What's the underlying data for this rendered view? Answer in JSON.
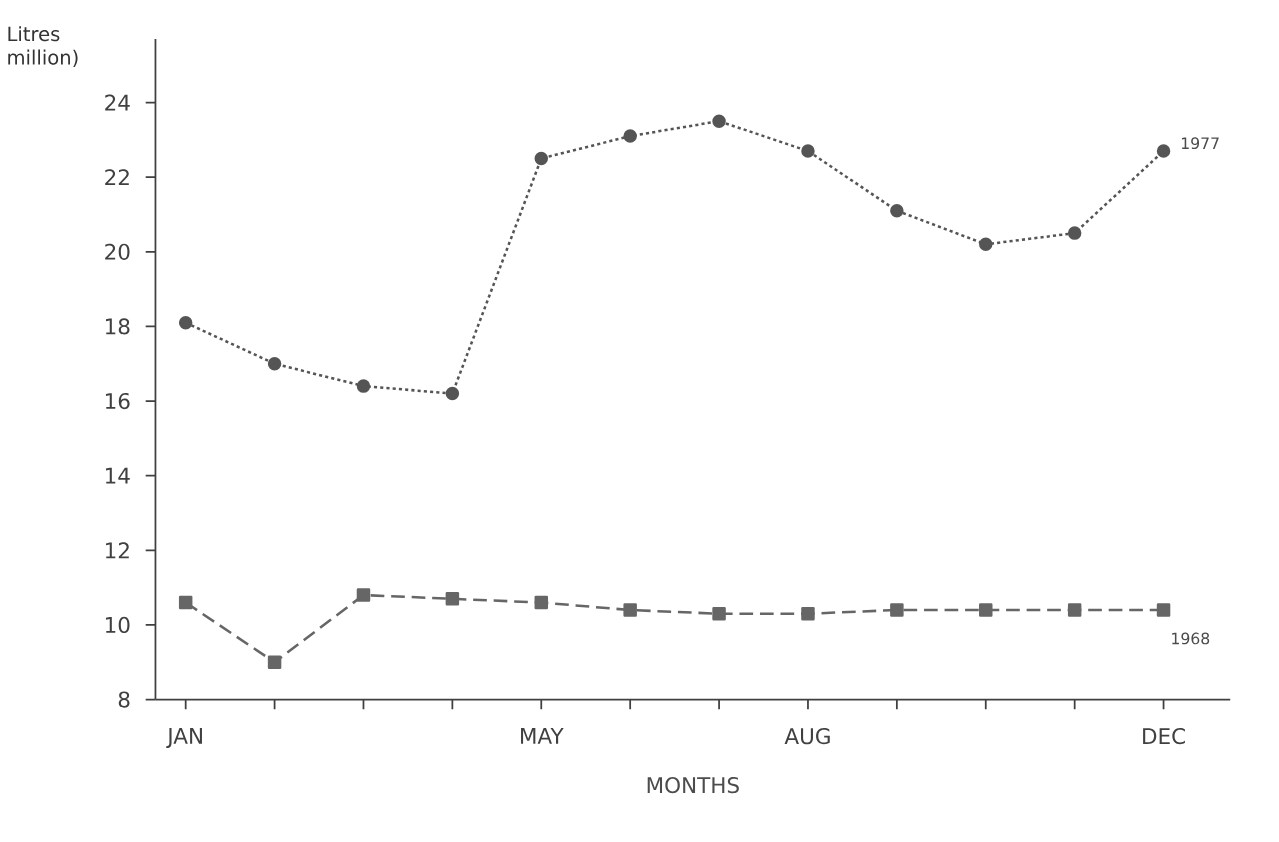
{
  "chart_data": {
    "type": "line",
    "xlabel": "MONTHS",
    "ylabel": "Litres million)",
    "categories": [
      "JAN",
      null,
      null,
      null,
      "MAY",
      null,
      null,
      "AUG",
      null,
      null,
      null,
      "DEC"
    ],
    "ylim": [
      8,
      25.7
    ],
    "yticks": [
      8,
      10,
      12,
      14,
      16,
      18,
      20,
      22,
      24
    ],
    "grid": false,
    "series": [
      {
        "name": "1977",
        "color": "#555555",
        "marker": "circle",
        "line_style": "dotted",
        "values": [
          18.1,
          17.0,
          16.4,
          16.2,
          22.5,
          23.1,
          23.5,
          22.7,
          21.1,
          20.2,
          20.5,
          22.7
        ]
      },
      {
        "name": "1968",
        "color": "#666666",
        "marker": "square",
        "line_style": "dashed",
        "values": [
          10.6,
          9.0,
          10.8,
          10.7,
          10.6,
          10.4,
          10.3,
          10.3,
          10.4,
          10.4,
          10.4,
          10.4
        ]
      }
    ]
  }
}
